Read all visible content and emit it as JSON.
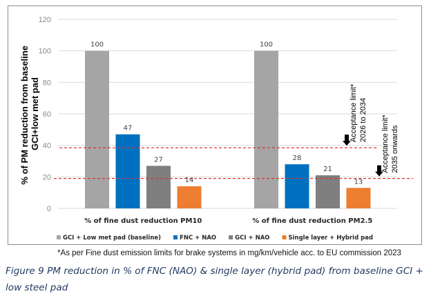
{
  "chart_data": {
    "type": "bar",
    "title": "",
    "xlabel": "",
    "ylabel_lines": [
      "% of PM reduction from baseline",
      "GCI+low met pad"
    ],
    "ylim": [
      0,
      120
    ],
    "yticks": [
      0,
      20,
      40,
      60,
      80,
      100,
      120
    ],
    "grid": true,
    "legend_position": "bottom",
    "categories": [
      "% of fine dust reduction PM10",
      "% of fine dust reduction PM2.5"
    ],
    "series": [
      {
        "name": "GCI + Low met pad (baseline)",
        "color": "#a5a5a5",
        "values": [
          100,
          100
        ]
      },
      {
        "name": "FNC + NAO",
        "color": "#0070c0",
        "values": [
          47,
          28
        ]
      },
      {
        "name": "GCI + NAO",
        "color": "#7f7f7f",
        "values": [
          27,
          21
        ]
      },
      {
        "name": "Single layer + Hybrid pad",
        "color": "#ed7d31",
        "values": [
          14,
          13
        ]
      }
    ],
    "reference_lines": [
      {
        "value": 38.5,
        "color": "#e03030",
        "style": "dashed",
        "annotation_lines": [
          "Acceptance limit*",
          "2026 to 2034"
        ]
      },
      {
        "value": 19,
        "color": "#e03030",
        "style": "dashed",
        "annotation_lines": [
          "Acceptance limit*",
          "2035 onwards"
        ]
      }
    ]
  },
  "footnote": "*As per Fine dust emission limits for brake systems in mg/km/vehicle acc. to EU commission 2023",
  "caption": "Figure 9 PM reduction in % of FNC (NAO) & single layer (hybrid pad) from baseline GCI + low steel pad"
}
